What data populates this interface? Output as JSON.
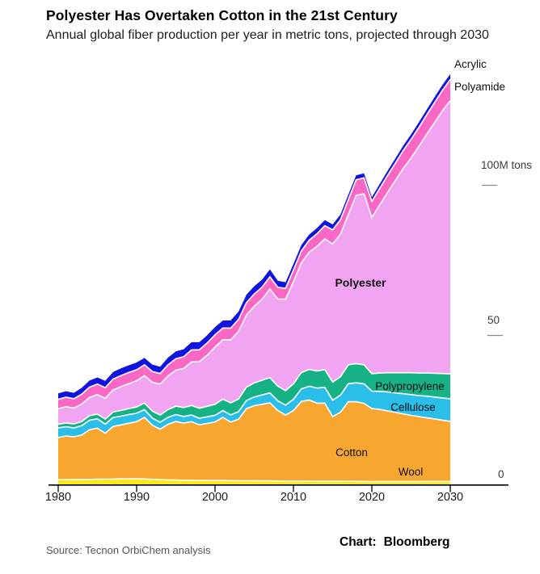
{
  "chart_data": {
    "type": "area",
    "stacked": true,
    "title": "Polyester Has Overtaken Cotton in the 21st Century",
    "subtitle": "Annual global fiber production per year in metric tons, projected through 2030",
    "xlabel": "",
    "ylabel": "",
    "unit": "million metric tons",
    "x_range": [
      1980,
      2030
    ],
    "ylim": [
      0,
      140
    ],
    "grid": "none",
    "legend": "direct-labels",
    "x_ticks": [
      1980,
      1990,
      2000,
      2010,
      2020,
      2030
    ],
    "y_ticks": [
      {
        "value": 100,
        "label": "100M tons",
        "dash": true
      },
      {
        "value": 50,
        "label": "50",
        "dash": true
      },
      {
        "value": 0,
        "label": "0",
        "dash": false
      }
    ],
    "years": [
      1980,
      1981,
      1982,
      1983,
      1984,
      1985,
      1986,
      1987,
      1988,
      1989,
      1990,
      1991,
      1992,
      1993,
      1994,
      1995,
      1996,
      1997,
      1998,
      1999,
      2000,
      2001,
      2002,
      2003,
      2004,
      2005,
      2006,
      2007,
      2008,
      2009,
      2010,
      2011,
      2012,
      2013,
      2014,
      2015,
      2016,
      2017,
      2018,
      2019,
      2020,
      2021,
      2022,
      2023,
      2024,
      2025,
      2026,
      2027,
      2028,
      2029,
      2030
    ],
    "series": [
      {
        "id": "wool",
        "name": "Wool",
        "color": "#F9E91C",
        "values": [
          1.6,
          1.62,
          1.63,
          1.65,
          1.68,
          1.72,
          1.75,
          1.78,
          1.82,
          1.85,
          1.88,
          1.8,
          1.7,
          1.6,
          1.5,
          1.45,
          1.4,
          1.38,
          1.35,
          1.3,
          1.3,
          1.28,
          1.25,
          1.22,
          1.2,
          1.2,
          1.18,
          1.15,
          1.12,
          1.1,
          1.1,
          1.1,
          1.08,
          1.06,
          1.05,
          1.05,
          1.04,
          1.03,
          1.02,
          1.0,
          0.95,
          0.96,
          0.97,
          0.97,
          0.98,
          0.98,
          0.98,
          0.99,
          0.99,
          1.0,
          1.0
        ]
      },
      {
        "id": "cotton",
        "name": "Cotton",
        "color": "#F7A630",
        "values": [
          14.0,
          14.5,
          14.2,
          14.8,
          16.5,
          17.0,
          15.3,
          17.5,
          18.0,
          18.5,
          19.0,
          20.5,
          18.0,
          16.8,
          18.5,
          19.5,
          19.0,
          19.5,
          18.5,
          19.0,
          19.5,
          21.0,
          19.5,
          20.5,
          24.0,
          25.0,
          25.5,
          26.0,
          23.5,
          22.0,
          23.5,
          26.5,
          27.0,
          26.0,
          26.0,
          21.5,
          23.0,
          26.5,
          26.5,
          26.0,
          24.3,
          24.0,
          23.5,
          23.0,
          22.5,
          22.0,
          21.6,
          21.2,
          20.8,
          20.4,
          20.0
        ]
      },
      {
        "id": "cellulose",
        "name": "Cellulose",
        "color": "#2BBEE9",
        "values": [
          3.2,
          3.1,
          3.0,
          3.1,
          3.2,
          3.1,
          3.0,
          3.0,
          2.9,
          2.9,
          2.8,
          2.6,
          2.4,
          2.3,
          2.3,
          2.3,
          2.2,
          2.2,
          2.2,
          2.2,
          2.2,
          2.3,
          2.4,
          2.5,
          2.7,
          2.9,
          3.1,
          3.3,
          3.2,
          3.3,
          3.7,
          4.2,
          4.6,
          5.0,
          5.3,
          5.5,
          5.7,
          6.0,
          6.3,
          6.5,
          5.8,
          6.0,
          6.3,
          6.5,
          6.7,
          6.9,
          7.0,
          7.2,
          7.3,
          7.4,
          7.5
        ]
      },
      {
        "id": "polypropylene",
        "name": "Polypropylene",
        "color": "#16B184",
        "values": [
          1.2,
          1.25,
          1.3,
          1.4,
          1.5,
          1.6,
          1.7,
          1.8,
          1.9,
          2.0,
          2.1,
          2.2,
          2.3,
          2.4,
          2.6,
          2.8,
          3.0,
          3.2,
          3.3,
          3.5,
          3.7,
          3.8,
          4.0,
          4.2,
          4.5,
          4.7,
          4.9,
          5.1,
          4.9,
          4.8,
          5.2,
          5.4,
          5.6,
          5.7,
          5.9,
          6.0,
          6.1,
          6.3,
          6.4,
          6.3,
          5.8,
          6.1,
          6.4,
          6.7,
          7.0,
          7.3,
          7.5,
          7.7,
          7.9,
          8.1,
          8.3
        ]
      },
      {
        "id": "polyester",
        "name": "Polyester",
        "color": "#F1A4F1",
        "values": [
          5.2,
          5.4,
          5.3,
          5.8,
          6.1,
          6.5,
          6.9,
          7.4,
          7.9,
          8.3,
          8.7,
          9.1,
          9.6,
          10.3,
          11.2,
          12.0,
          13.0,
          14.5,
          15.5,
          17.0,
          19.0,
          19.8,
          21.0,
          22.5,
          24.0,
          25.5,
          27.0,
          29.5,
          29.0,
          30.5,
          34.0,
          36.5,
          39.0,
          41.5,
          43.5,
          46.0,
          47.5,
          50.0,
          56.0,
          57.0,
          52.0,
          56.0,
          60.0,
          64.0,
          68.0,
          71.5,
          75.5,
          79.5,
          83.5,
          87.5,
          91.0
        ]
      },
      {
        "id": "polyamide",
        "name": "Polyamide",
        "color": "#FA68C5",
        "values": [
          3.1,
          3.15,
          3.1,
          3.3,
          3.4,
          3.5,
          3.55,
          3.6,
          3.7,
          3.7,
          3.7,
          3.6,
          3.6,
          3.5,
          3.7,
          3.8,
          3.9,
          4.0,
          4.0,
          4.1,
          4.1,
          3.9,
          3.9,
          4.0,
          4.1,
          4.1,
          4.0,
          4.1,
          3.9,
          3.6,
          3.9,
          4.0,
          4.0,
          4.2,
          4.4,
          4.7,
          4.8,
          5.0,
          5.2,
          5.3,
          5.4,
          5.5,
          5.7,
          5.8,
          6.0,
          6.2,
          6.3,
          6.5,
          6.7,
          6.8,
          7.0
        ]
      },
      {
        "id": "acrylic",
        "name": "Acrylic",
        "color": "#1113DF",
        "values": [
          2.0,
          2.0,
          1.95,
          2.1,
          2.2,
          2.2,
          2.3,
          2.35,
          2.4,
          2.4,
          2.4,
          2.3,
          2.3,
          2.3,
          2.4,
          2.45,
          2.5,
          2.55,
          2.5,
          2.55,
          2.6,
          2.5,
          2.55,
          2.6,
          2.65,
          2.6,
          2.5,
          2.45,
          2.2,
          2.0,
          2.0,
          1.95,
          1.9,
          1.9,
          1.85,
          1.8,
          1.7,
          1.6,
          1.5,
          1.45,
          1.4,
          1.45,
          1.5,
          1.55,
          1.6,
          1.65,
          1.7,
          1.72,
          1.75,
          1.78,
          1.8
        ]
      }
    ],
    "separator_color": "#ffffff",
    "axis_color": "#000000",
    "dash_color": "#8a8a8a"
  },
  "footer": {
    "source": "Source: Tecnon OrbiChem analysis",
    "credit_label": "Chart:",
    "credit_value": "Bloomberg"
  }
}
